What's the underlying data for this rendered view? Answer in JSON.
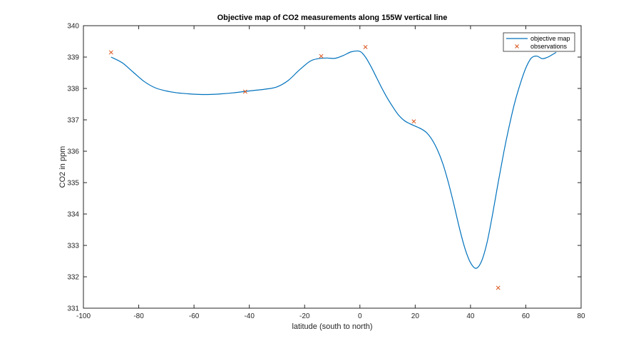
{
  "chart_data": {
    "type": "line",
    "title": "Objective map of CO2 measurements along 155W vertical line",
    "xlabel": "latitude (south to north)",
    "ylabel": "CO2 in ppm",
    "xlim": [
      -100,
      80
    ],
    "ylim": [
      331,
      340
    ],
    "xticks": [
      -100,
      -80,
      -60,
      -40,
      -20,
      0,
      20,
      40,
      60,
      80
    ],
    "yticks": [
      331,
      332,
      333,
      334,
      335,
      336,
      337,
      338,
      339,
      340
    ],
    "grid": false,
    "legend_placement": "top-right",
    "series": [
      {
        "name": "objective map",
        "style": "line",
        "color": "#0072bd",
        "x": [
          -90,
          -86,
          -82,
          -78,
          -74,
          -70,
          -66,
          -62,
          -58,
          -54,
          -50,
          -46,
          -42,
          -38,
          -34,
          -30,
          -26,
          -22,
          -18,
          -15,
          -12,
          -9,
          -6,
          -3,
          0,
          2,
          4,
          6,
          8,
          10,
          12,
          14,
          16,
          18,
          20,
          22,
          24,
          26,
          28,
          30,
          32,
          34,
          36,
          38,
          40,
          42,
          44,
          46,
          48,
          50,
          52,
          54,
          56,
          58,
          60,
          62,
          64,
          66,
          68,
          70,
          71
        ],
        "y": [
          339.0,
          338.82,
          338.52,
          338.22,
          338.02,
          337.92,
          337.86,
          337.83,
          337.81,
          337.81,
          337.83,
          337.86,
          337.9,
          337.94,
          337.98,
          338.05,
          338.25,
          338.58,
          338.87,
          338.95,
          338.97,
          338.96,
          339.05,
          339.17,
          339.18,
          339.0,
          338.7,
          338.35,
          338.0,
          337.68,
          337.4,
          337.15,
          336.98,
          336.88,
          336.8,
          336.72,
          336.6,
          336.38,
          336.05,
          335.6,
          335.0,
          334.3,
          333.55,
          332.9,
          332.45,
          332.27,
          332.5,
          333.1,
          334.0,
          335.0,
          335.95,
          336.8,
          337.55,
          338.15,
          338.65,
          338.97,
          339.03,
          338.95,
          339.0,
          339.1,
          339.15
        ],
        "note_truncate_to_data": true
      },
      {
        "name": "observations",
        "style": "marker-x",
        "color": "#d95319",
        "x": [
          -90,
          -41.5,
          -14,
          2,
          19.5,
          50
        ],
        "y": [
          339.15,
          337.9,
          339.03,
          339.32,
          336.95,
          331.65
        ]
      }
    ]
  }
}
